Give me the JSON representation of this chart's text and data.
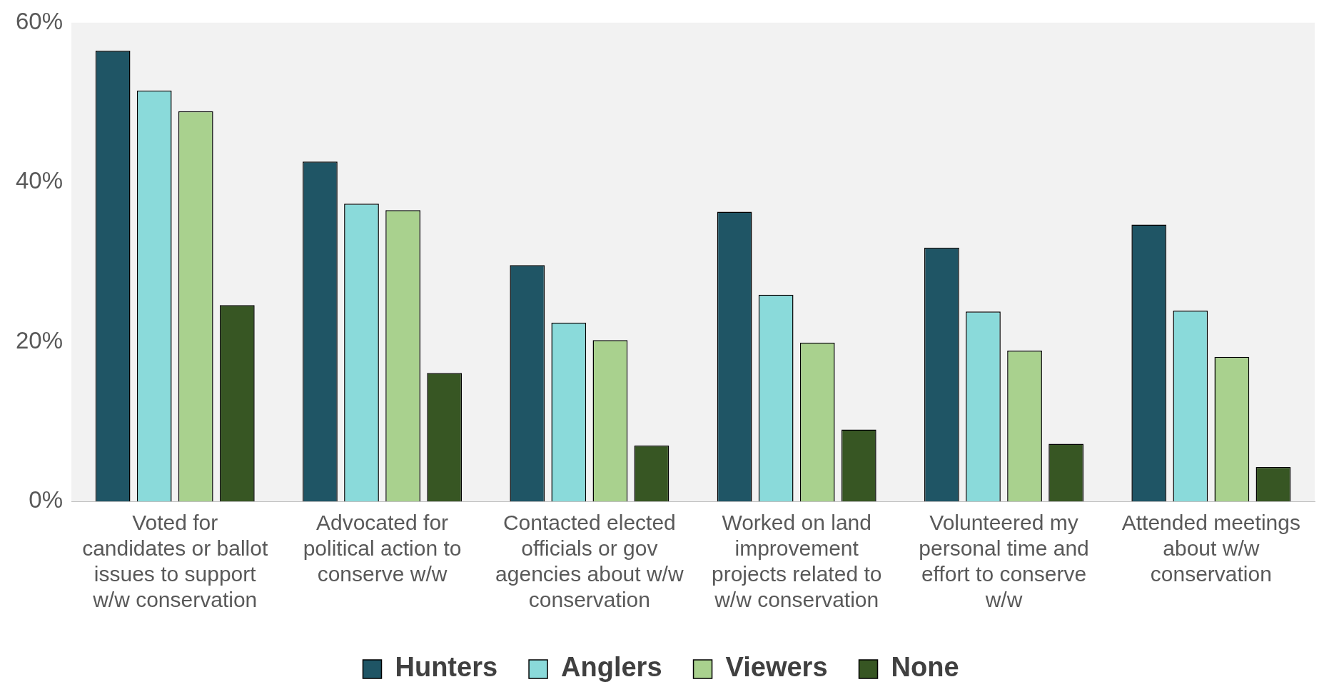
{
  "chart_data": {
    "type": "bar",
    "categories": [
      "Voted for candidates or ballot issues to support w/w conservation",
      "Advocated for political action to conserve w/w",
      "Contacted elected officials or gov agencies about w/w conservation",
      "Worked on land improvement projects related to w/w conservation",
      "Volunteered my personal time and effort to conserve w/w",
      "Attended meetings about w/w conservation"
    ],
    "series": [
      {
        "name": "Hunters",
        "color": "#1f5565",
        "values": [
          56.5,
          42.6,
          29.6,
          36.3,
          31.8,
          34.7
        ]
      },
      {
        "name": "Anglers",
        "color": "#8adada",
        "values": [
          51.5,
          37.3,
          22.4,
          25.9,
          23.8,
          23.9
        ]
      },
      {
        "name": "Viewers",
        "color": "#a9d18e",
        "values": [
          48.9,
          36.5,
          20.2,
          19.9,
          18.9,
          18.1
        ]
      },
      {
        "name": "None",
        "color": "#375623",
        "values": [
          24.6,
          16.1,
          7.0,
          9.0,
          7.2,
          4.3
        ]
      }
    ],
    "ylim": [
      0,
      60
    ],
    "yticks": [
      {
        "value": 0,
        "label": "0%"
      },
      {
        "value": 20,
        "label": "20%"
      },
      {
        "value": 40,
        "label": "40%"
      },
      {
        "value": 60,
        "label": "60%"
      }
    ],
    "grid": false,
    "legend": "bottom"
  }
}
